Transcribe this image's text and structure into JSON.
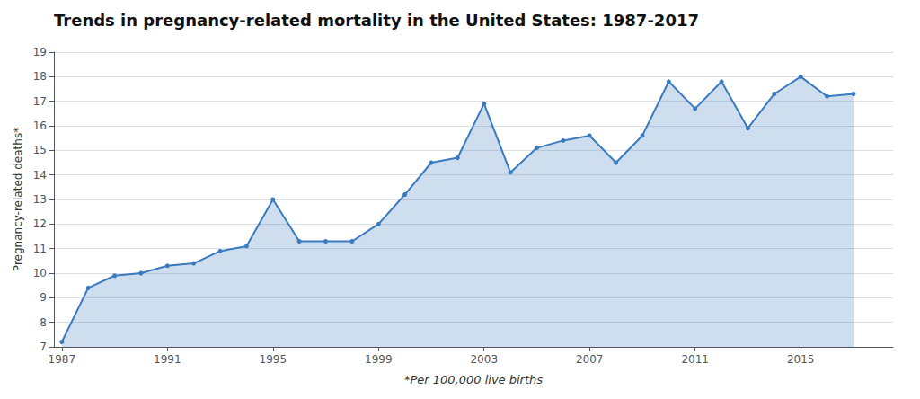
{
  "chart_data": {
    "type": "line",
    "title": "Trends in pregnancy-related mortality in the United States: 1987-2017",
    "xlabel": "*Per 100,000 live births",
    "ylabel": "Pregnancy-related deaths*",
    "x": [
      1987,
      1988,
      1989,
      1990,
      1991,
      1992,
      1993,
      1994,
      1995,
      1996,
      1997,
      1998,
      1999,
      2000,
      2001,
      2002,
      2003,
      2004,
      2005,
      2006,
      2007,
      2008,
      2009,
      2010,
      2011,
      2012,
      2013,
      2014,
      2015,
      2016,
      2017
    ],
    "values": [
      7.2,
      9.4,
      9.9,
      10.0,
      10.3,
      10.4,
      10.9,
      11.1,
      13.0,
      11.3,
      11.3,
      11.3,
      12.0,
      13.2,
      14.5,
      14.7,
      16.9,
      14.1,
      15.1,
      15.4,
      15.6,
      14.5,
      15.6,
      17.8,
      16.7,
      17.8,
      15.9,
      17.3,
      18.0,
      17.2,
      17.3
    ],
    "color": "#3a7abf",
    "marker": "circle",
    "xlim": [
      1986.7,
      2018.5
    ],
    "xticks": [
      1987,
      1991,
      1995,
      1999,
      2003,
      2007,
      2011,
      2015
    ],
    "ylim": [
      7,
      19
    ],
    "yticks": [
      7,
      8,
      9,
      10,
      11,
      12,
      13,
      14,
      15,
      16,
      17,
      18,
      19
    ],
    "grid": true
  }
}
